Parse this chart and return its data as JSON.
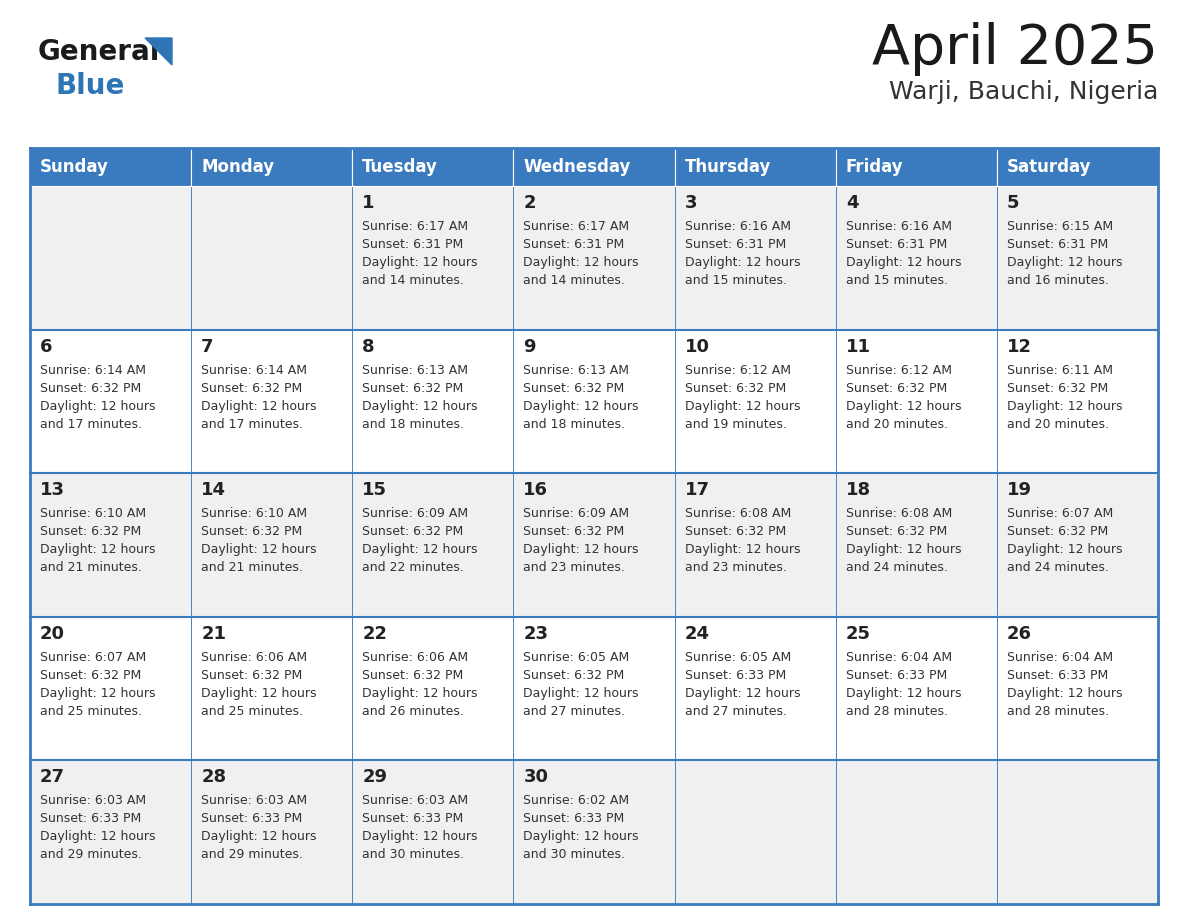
{
  "title": "April 2025",
  "subtitle": "Warji, Bauchi, Nigeria",
  "days_of_week": [
    "Sunday",
    "Monday",
    "Tuesday",
    "Wednesday",
    "Thursday",
    "Friday",
    "Saturday"
  ],
  "header_bg": "#3A7ABF",
  "header_text_color": "#FFFFFF",
  "odd_row_bg": "#F0F0F0",
  "even_row_bg": "#FFFFFF",
  "cell_border_color": "#3A7ABF",
  "title_color": "#1a1a1a",
  "subtitle_color": "#333333",
  "day_num_color": "#222222",
  "cell_text_color": "#333333",
  "logo_general_color": "#1a1a1a",
  "logo_blue_color": "#2E75B6",
  "calendar_data": [
    [
      {
        "day": null,
        "sunrise": null,
        "sunset": null,
        "daylight": null
      },
      {
        "day": null,
        "sunrise": null,
        "sunset": null,
        "daylight": null
      },
      {
        "day": 1,
        "sunrise": "6:17 AM",
        "sunset": "6:31 PM",
        "daylight": "12 hours and 14 minutes."
      },
      {
        "day": 2,
        "sunrise": "6:17 AM",
        "sunset": "6:31 PM",
        "daylight": "12 hours and 14 minutes."
      },
      {
        "day": 3,
        "sunrise": "6:16 AM",
        "sunset": "6:31 PM",
        "daylight": "12 hours and 15 minutes."
      },
      {
        "day": 4,
        "sunrise": "6:16 AM",
        "sunset": "6:31 PM",
        "daylight": "12 hours and 15 minutes."
      },
      {
        "day": 5,
        "sunrise": "6:15 AM",
        "sunset": "6:31 PM",
        "daylight": "12 hours and 16 minutes."
      }
    ],
    [
      {
        "day": 6,
        "sunrise": "6:14 AM",
        "sunset": "6:32 PM",
        "daylight": "12 hours and 17 minutes."
      },
      {
        "day": 7,
        "sunrise": "6:14 AM",
        "sunset": "6:32 PM",
        "daylight": "12 hours and 17 minutes."
      },
      {
        "day": 8,
        "sunrise": "6:13 AM",
        "sunset": "6:32 PM",
        "daylight": "12 hours and 18 minutes."
      },
      {
        "day": 9,
        "sunrise": "6:13 AM",
        "sunset": "6:32 PM",
        "daylight": "12 hours and 18 minutes."
      },
      {
        "day": 10,
        "sunrise": "6:12 AM",
        "sunset": "6:32 PM",
        "daylight": "12 hours and 19 minutes."
      },
      {
        "day": 11,
        "sunrise": "6:12 AM",
        "sunset": "6:32 PM",
        "daylight": "12 hours and 20 minutes."
      },
      {
        "day": 12,
        "sunrise": "6:11 AM",
        "sunset": "6:32 PM",
        "daylight": "12 hours and 20 minutes."
      }
    ],
    [
      {
        "day": 13,
        "sunrise": "6:10 AM",
        "sunset": "6:32 PM",
        "daylight": "12 hours and 21 minutes."
      },
      {
        "day": 14,
        "sunrise": "6:10 AM",
        "sunset": "6:32 PM",
        "daylight": "12 hours and 21 minutes."
      },
      {
        "day": 15,
        "sunrise": "6:09 AM",
        "sunset": "6:32 PM",
        "daylight": "12 hours and 22 minutes."
      },
      {
        "day": 16,
        "sunrise": "6:09 AM",
        "sunset": "6:32 PM",
        "daylight": "12 hours and 23 minutes."
      },
      {
        "day": 17,
        "sunrise": "6:08 AM",
        "sunset": "6:32 PM",
        "daylight": "12 hours and 23 minutes."
      },
      {
        "day": 18,
        "sunrise": "6:08 AM",
        "sunset": "6:32 PM",
        "daylight": "12 hours and 24 minutes."
      },
      {
        "day": 19,
        "sunrise": "6:07 AM",
        "sunset": "6:32 PM",
        "daylight": "12 hours and 24 minutes."
      }
    ],
    [
      {
        "day": 20,
        "sunrise": "6:07 AM",
        "sunset": "6:32 PM",
        "daylight": "12 hours and 25 minutes."
      },
      {
        "day": 21,
        "sunrise": "6:06 AM",
        "sunset": "6:32 PM",
        "daylight": "12 hours and 25 minutes."
      },
      {
        "day": 22,
        "sunrise": "6:06 AM",
        "sunset": "6:32 PM",
        "daylight": "12 hours and 26 minutes."
      },
      {
        "day": 23,
        "sunrise": "6:05 AM",
        "sunset": "6:32 PM",
        "daylight": "12 hours and 27 minutes."
      },
      {
        "day": 24,
        "sunrise": "6:05 AM",
        "sunset": "6:33 PM",
        "daylight": "12 hours and 27 minutes."
      },
      {
        "day": 25,
        "sunrise": "6:04 AM",
        "sunset": "6:33 PM",
        "daylight": "12 hours and 28 minutes."
      },
      {
        "day": 26,
        "sunrise": "6:04 AM",
        "sunset": "6:33 PM",
        "daylight": "12 hours and 28 minutes."
      }
    ],
    [
      {
        "day": 27,
        "sunrise": "6:03 AM",
        "sunset": "6:33 PM",
        "daylight": "12 hours and 29 minutes."
      },
      {
        "day": 28,
        "sunrise": "6:03 AM",
        "sunset": "6:33 PM",
        "daylight": "12 hours and 29 minutes."
      },
      {
        "day": 29,
        "sunrise": "6:03 AM",
        "sunset": "6:33 PM",
        "daylight": "12 hours and 30 minutes."
      },
      {
        "day": 30,
        "sunrise": "6:02 AM",
        "sunset": "6:33 PM",
        "daylight": "12 hours and 30 minutes."
      },
      {
        "day": null,
        "sunrise": null,
        "sunset": null,
        "daylight": null
      },
      {
        "day": null,
        "sunrise": null,
        "sunset": null,
        "daylight": null
      },
      {
        "day": null,
        "sunrise": null,
        "sunset": null,
        "daylight": null
      }
    ]
  ]
}
